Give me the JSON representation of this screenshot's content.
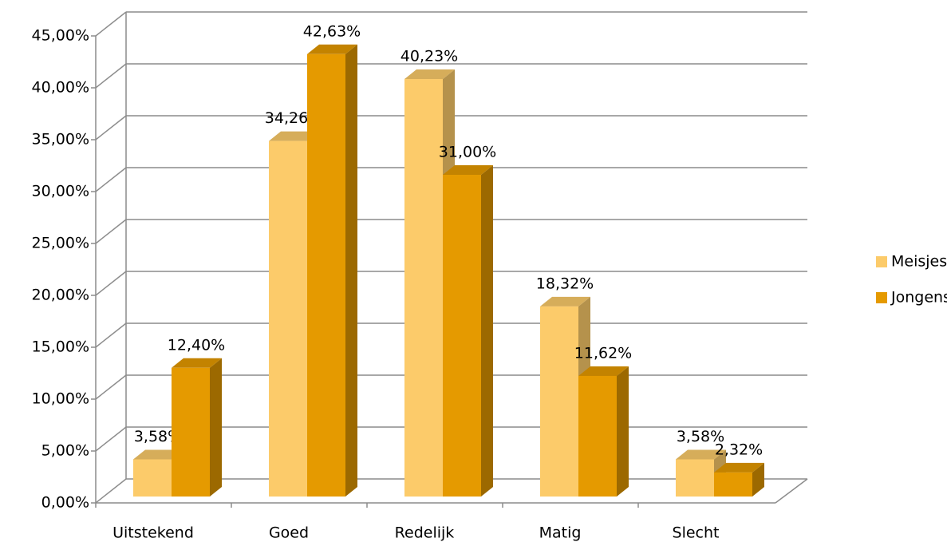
{
  "chart_data": {
    "type": "bar3d",
    "categories": [
      "Uitstekend",
      "Goed",
      "Redelijk",
      "Matig",
      "Slecht"
    ],
    "series": [
      {
        "name": "Meisjes",
        "color": "#fccb6a",
        "values": [
          3.58,
          34.26,
          40.23,
          18.32,
          3.58
        ],
        "value_labels": [
          "3,58%",
          "34,26%",
          "40,23%",
          "18,32%",
          "3,58%"
        ]
      },
      {
        "name": "Jongens",
        "color": "#e59a00",
        "values": [
          12.4,
          42.63,
          31.0,
          11.62,
          2.32
        ],
        "value_labels": [
          "12,40%",
          "42,63%",
          "31,00%",
          "11,62%",
          "2,32%"
        ]
      }
    ],
    "ylim": [
      0,
      45
    ],
    "yticks": [
      {
        "value": 0,
        "label": "0,00%"
      },
      {
        "value": 5,
        "label": "5,00%"
      },
      {
        "value": 10,
        "label": "10,00%"
      },
      {
        "value": 15,
        "label": "15,00%"
      },
      {
        "value": 20,
        "label": "20,00%"
      },
      {
        "value": 25,
        "label": "25,00%"
      },
      {
        "value": 30,
        "label": "30,00%"
      },
      {
        "value": 35,
        "label": "35,00%"
      },
      {
        "value": 40,
        "label": "40,00%"
      },
      {
        "value": 45,
        "label": "45,00%"
      }
    ],
    "grid": true,
    "legend": "right"
  }
}
